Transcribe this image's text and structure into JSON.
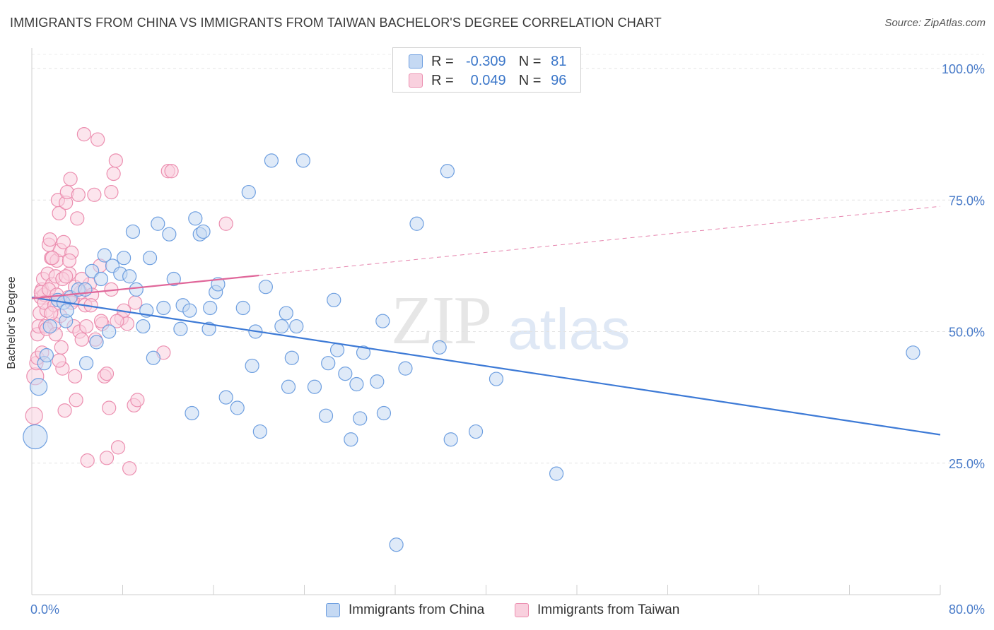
{
  "title": "IMMIGRANTS FROM CHINA VS IMMIGRANTS FROM TAIWAN BACHELOR'S DEGREE CORRELATION CHART",
  "source": "Source: ZipAtlas.com",
  "watermark": {
    "zip": "ZIP",
    "atlas": "atlas"
  },
  "legend": {
    "rows": [
      {
        "r_label": "R =",
        "r_value": "-0.309",
        "n_label": "N =",
        "n_value": "81"
      },
      {
        "r_label": "R =",
        "r_value": "0.049",
        "n_label": "N =",
        "n_value": "96"
      }
    ]
  },
  "bottom_legend": {
    "china": "Immigrants from China",
    "taiwan": "Immigrants from Taiwan"
  },
  "colors": {
    "china": "#6e9fe0",
    "china_fill": "#c5d9f3",
    "taiwan": "#ec8fb0",
    "taiwan_fill": "#f9d0de",
    "china_line": "#3d7ad6",
    "taiwan_line": "#e0679a",
    "tick": "#4a7cc9"
  },
  "chart_data": {
    "type": "scatter",
    "title": "IMMIGRANTS FROM CHINA VS IMMIGRANTS FROM TAIWAN BACHELOR'S DEGREE CORRELATION CHART",
    "xlabel": "",
    "ylabel": "Bachelor's Degree",
    "xlim": [
      0,
      80
    ],
    "ylim": [
      0,
      103
    ],
    "x_tick_labels": [
      "0.0%",
      "80.0%"
    ],
    "y_ticks": [
      25,
      50,
      75,
      100
    ],
    "y_tick_labels": [
      "25.0%",
      "50.0%",
      "75.0%",
      "100.0%"
    ],
    "grid": true,
    "legend_position": "top-center",
    "series": [
      {
        "name": "Immigrants from China",
        "color": "#6e9fe0",
        "r": -0.309,
        "n": 81,
        "trend": {
          "x": [
            0,
            80
          ],
          "y": [
            56.5,
            30.4
          ],
          "dashed_from": null
        },
        "points": [
          [
            0.3,
            30,
            3
          ],
          [
            0.6,
            39.5,
            2
          ],
          [
            1.1,
            44,
            1
          ],
          [
            1.3,
            45.5,
            1
          ],
          [
            1.6,
            51,
            1
          ],
          [
            2.3,
            56,
            1
          ],
          [
            2.8,
            55.5,
            1
          ],
          [
            3,
            52,
            1
          ],
          [
            3.1,
            54,
            1
          ],
          [
            3.4,
            56.5,
            1
          ],
          [
            4.1,
            58,
            1
          ],
          [
            4.7,
            58,
            1
          ],
          [
            4.8,
            44,
            1
          ],
          [
            5.3,
            61.5,
            1
          ],
          [
            5.7,
            48,
            1
          ],
          [
            6.1,
            60,
            1
          ],
          [
            6.4,
            64.5,
            1
          ],
          [
            6.8,
            50,
            1
          ],
          [
            7.1,
            62.5,
            1
          ],
          [
            7.8,
            61,
            1
          ],
          [
            8.1,
            64,
            1
          ],
          [
            8.6,
            60.5,
            1
          ],
          [
            8.9,
            69,
            1
          ],
          [
            9.2,
            58,
            1
          ],
          [
            9.8,
            51,
            1
          ],
          [
            10.1,
            54,
            1
          ],
          [
            10.4,
            64,
            1
          ],
          [
            10.7,
            45,
            1
          ],
          [
            11.1,
            70.5,
            1
          ],
          [
            11.6,
            54.5,
            1
          ],
          [
            12.1,
            68.5,
            1
          ],
          [
            12.5,
            60,
            1
          ],
          [
            13.3,
            55,
            1
          ],
          [
            13.1,
            50.5,
            1
          ],
          [
            13.9,
            54,
            1
          ],
          [
            14.1,
            34.5,
            1
          ],
          [
            14.4,
            71.5,
            1
          ],
          [
            14.8,
            68.5,
            1
          ],
          [
            15.1,
            69,
            1
          ],
          [
            15.6,
            50.5,
            1
          ],
          [
            15.7,
            54.5,
            1
          ],
          [
            16.2,
            57.5,
            1
          ],
          [
            16.4,
            59,
            1
          ],
          [
            17.1,
            37.5,
            1
          ],
          [
            18.1,
            35.5,
            1
          ],
          [
            18.6,
            54.5,
            1
          ],
          [
            19.1,
            76.5,
            1
          ],
          [
            19.4,
            43.5,
            1
          ],
          [
            19.7,
            50,
            1
          ],
          [
            20.1,
            31,
            1
          ],
          [
            20.6,
            58.5,
            1
          ],
          [
            21.1,
            82.5,
            1
          ],
          [
            22,
            51,
            1
          ],
          [
            22.4,
            53.5,
            1
          ],
          [
            22.6,
            39.5,
            1
          ],
          [
            22.9,
            45,
            1
          ],
          [
            23.3,
            51,
            1
          ],
          [
            23.9,
            82.5,
            1
          ],
          [
            24.9,
            39.5,
            1
          ],
          [
            25.9,
            34,
            1
          ],
          [
            26.1,
            44,
            1
          ],
          [
            26.6,
            56,
            1
          ],
          [
            26.9,
            46.5,
            1
          ],
          [
            27.6,
            42,
            1
          ],
          [
            28.1,
            29.5,
            1
          ],
          [
            28.6,
            40,
            1
          ],
          [
            28.9,
            33.5,
            1
          ],
          [
            29.2,
            46,
            1
          ],
          [
            30.4,
            40.5,
            1
          ],
          [
            30.9,
            52,
            1
          ],
          [
            31,
            34.5,
            1
          ],
          [
            32.1,
            9.5,
            1
          ],
          [
            32.9,
            43,
            1
          ],
          [
            33.9,
            70.5,
            1
          ],
          [
            35.9,
            47,
            1
          ],
          [
            36.6,
            80.5,
            1
          ],
          [
            36.9,
            29.5,
            1
          ],
          [
            39.1,
            31,
            1
          ],
          [
            40.9,
            41,
            1
          ],
          [
            46.2,
            23,
            1
          ],
          [
            77.6,
            46,
            1
          ]
        ]
      },
      {
        "name": "Immigrants from Taiwan",
        "color": "#ec8fb0",
        "r": 0.049,
        "n": 96,
        "trend": {
          "x": [
            0,
            80
          ],
          "y": [
            56.3,
            73.8
          ],
          "dashed_from": 20
        },
        "points": [
          [
            0.2,
            34,
            2
          ],
          [
            0.3,
            41.5,
            2
          ],
          [
            0.4,
            44,
            1
          ],
          [
            0.5,
            49.5,
            1
          ],
          [
            0.6,
            51,
            1
          ],
          [
            0.7,
            53.5,
            1
          ],
          [
            0.8,
            56.5,
            1
          ],
          [
            0.9,
            58,
            1
          ],
          [
            1,
            60,
            1
          ],
          [
            1.1,
            57,
            1
          ],
          [
            1.2,
            51,
            1
          ],
          [
            1.3,
            54,
            1
          ],
          [
            1.4,
            61,
            1
          ],
          [
            1.5,
            66.5,
            1
          ],
          [
            1.6,
            67.5,
            1
          ],
          [
            1.7,
            64,
            1
          ],
          [
            1.8,
            59,
            1
          ],
          [
            1.9,
            56,
            1
          ],
          [
            2,
            51.5,
            1
          ],
          [
            2.1,
            60.5,
            1
          ],
          [
            2.2,
            63.5,
            1
          ],
          [
            2.3,
            75,
            1
          ],
          [
            2.4,
            72.5,
            1
          ],
          [
            2.5,
            65.5,
            1
          ],
          [
            2.6,
            47,
            1
          ],
          [
            2.7,
            43,
            1
          ],
          [
            2.8,
            67,
            1
          ],
          [
            2.9,
            35,
            1
          ],
          [
            3,
            74.5,
            1
          ],
          [
            3.1,
            76.5,
            1
          ],
          [
            3.2,
            56.5,
            1
          ],
          [
            3.3,
            61,
            1
          ],
          [
            3.4,
            79,
            1
          ],
          [
            3.5,
            65,
            1
          ],
          [
            3.6,
            56,
            1
          ],
          [
            3.7,
            51,
            1
          ],
          [
            3.8,
            41.5,
            1
          ],
          [
            3.9,
            37,
            1
          ],
          [
            4,
            71.5,
            1
          ],
          [
            4.1,
            76,
            1
          ],
          [
            4.2,
            50,
            1
          ],
          [
            4.3,
            57.5,
            1
          ],
          [
            4.4,
            48.5,
            1
          ],
          [
            4.6,
            87.5,
            1
          ],
          [
            4.8,
            51,
            1
          ],
          [
            4.9,
            25.5,
            1
          ],
          [
            5.1,
            59,
            1
          ],
          [
            5.3,
            57,
            1
          ],
          [
            5.5,
            76,
            1
          ],
          [
            5.8,
            86.5,
            1
          ],
          [
            6,
            62.5,
            1
          ],
          [
            6.2,
            51.5,
            1
          ],
          [
            6.4,
            41.5,
            1
          ],
          [
            6.6,
            26,
            1
          ],
          [
            6.8,
            35.5,
            1
          ],
          [
            7,
            76.5,
            1
          ],
          [
            7.2,
            80,
            1
          ],
          [
            7.4,
            82.5,
            1
          ],
          [
            7.6,
            28,
            1
          ],
          [
            7.9,
            52.5,
            1
          ],
          [
            8.1,
            54,
            1
          ],
          [
            8.4,
            51.5,
            1
          ],
          [
            8.6,
            24,
            1
          ],
          [
            9,
            36,
            1
          ],
          [
            9.1,
            55.5,
            1
          ],
          [
            9.3,
            37,
            1
          ],
          [
            12,
            80.5,
            1
          ],
          [
            12.3,
            80.5,
            1
          ],
          [
            11.6,
            46,
            1
          ],
          [
            17.1,
            70.5,
            1
          ],
          [
            0.8,
            57.5,
            1
          ],
          [
            1.1,
            55.5,
            1
          ],
          [
            1.5,
            58,
            1
          ],
          [
            1.8,
            64,
            1
          ],
          [
            2.0,
            55,
            1
          ],
          [
            2.2,
            57,
            1
          ],
          [
            2.5,
            53,
            1
          ],
          [
            2.7,
            60,
            1
          ],
          [
            3.0,
            60.5,
            1
          ],
          [
            3.3,
            63.5,
            1
          ],
          [
            3.5,
            55.5,
            1
          ],
          [
            3.8,
            58.5,
            1
          ],
          [
            4.4,
            60,
            1
          ],
          [
            4.7,
            55,
            1
          ],
          [
            5.2,
            55,
            1
          ],
          [
            5.6,
            48.5,
            1
          ],
          [
            6.1,
            52,
            1
          ],
          [
            6.6,
            42,
            1
          ],
          [
            7.0,
            58,
            1
          ],
          [
            7.5,
            52,
            1
          ],
          [
            0.5,
            45,
            1
          ],
          [
            0.9,
            46,
            1
          ],
          [
            1.3,
            50.5,
            1
          ],
          [
            1.7,
            53.5,
            1
          ],
          [
            2.1,
            49.5,
            1
          ],
          [
            2.4,
            44.5,
            1
          ]
        ]
      }
    ]
  }
}
